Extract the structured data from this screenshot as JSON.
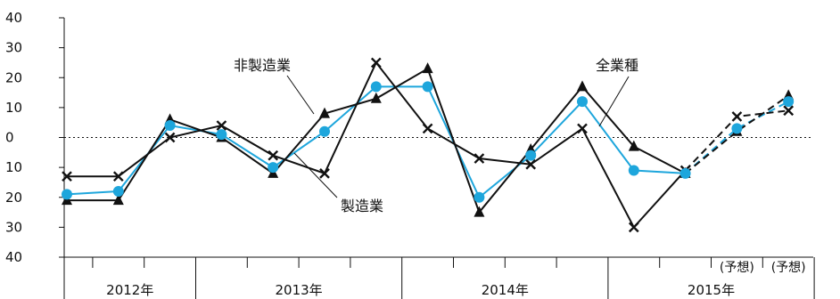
{
  "chart_data": {
    "type": "line",
    "y_ticks": [
      "40",
      "30",
      "20",
      "10",
      "0",
      "10",
      "20",
      "30",
      "40"
    ],
    "ylim": [
      -40,
      40
    ],
    "x": [
      "2012Q1",
      "2012Q2",
      "2012Q3",
      "2012Q4",
      "2013Q1",
      "2013Q2",
      "2013Q3",
      "2013Q4",
      "2014Q1",
      "2014Q2",
      "2014Q3",
      "2014Q4",
      "2015Q1",
      "2015Q2",
      "2015Q3"
    ],
    "year_labels": [
      {
        "label": "2012年",
        "from": 0,
        "to": 3
      },
      {
        "label": "2013年",
        "from": 3,
        "to": 7
      },
      {
        "label": "2014年",
        "from": 7,
        "to": 11
      },
      {
        "label": "2015年",
        "from": 11,
        "to": 15
      }
    ],
    "forecast_labels": [
      "(予想)",
      "(予想)"
    ],
    "forecast_start_index": 12,
    "series": [
      {
        "name": "全業種",
        "marker": "circle",
        "color": "#1ea6dc",
        "values": [
          -19,
          -18,
          4,
          1,
          -10,
          2,
          17,
          17,
          -20,
          -6,
          12,
          -11,
          -12,
          3,
          12
        ]
      },
      {
        "name": "製造業",
        "marker": "x",
        "color": "#111111",
        "values": [
          -13,
          -13,
          0,
          4,
          -6,
          -12,
          25,
          3,
          -7,
          -9,
          3,
          -30,
          -11,
          7,
          9
        ]
      },
      {
        "name": "非製造業",
        "marker": "triangle",
        "color": "#111111",
        "values": [
          -21,
          -21,
          6,
          0,
          -12,
          8,
          13,
          23,
          -25,
          -4,
          17,
          -3,
          -12,
          2,
          14
        ]
      }
    ],
    "annotations": [
      {
        "text": "非製造業",
        "series": "非製造業"
      },
      {
        "text": "製造業",
        "series": "製造業"
      },
      {
        "text": "全業種",
        "series": "全業種"
      }
    ]
  }
}
